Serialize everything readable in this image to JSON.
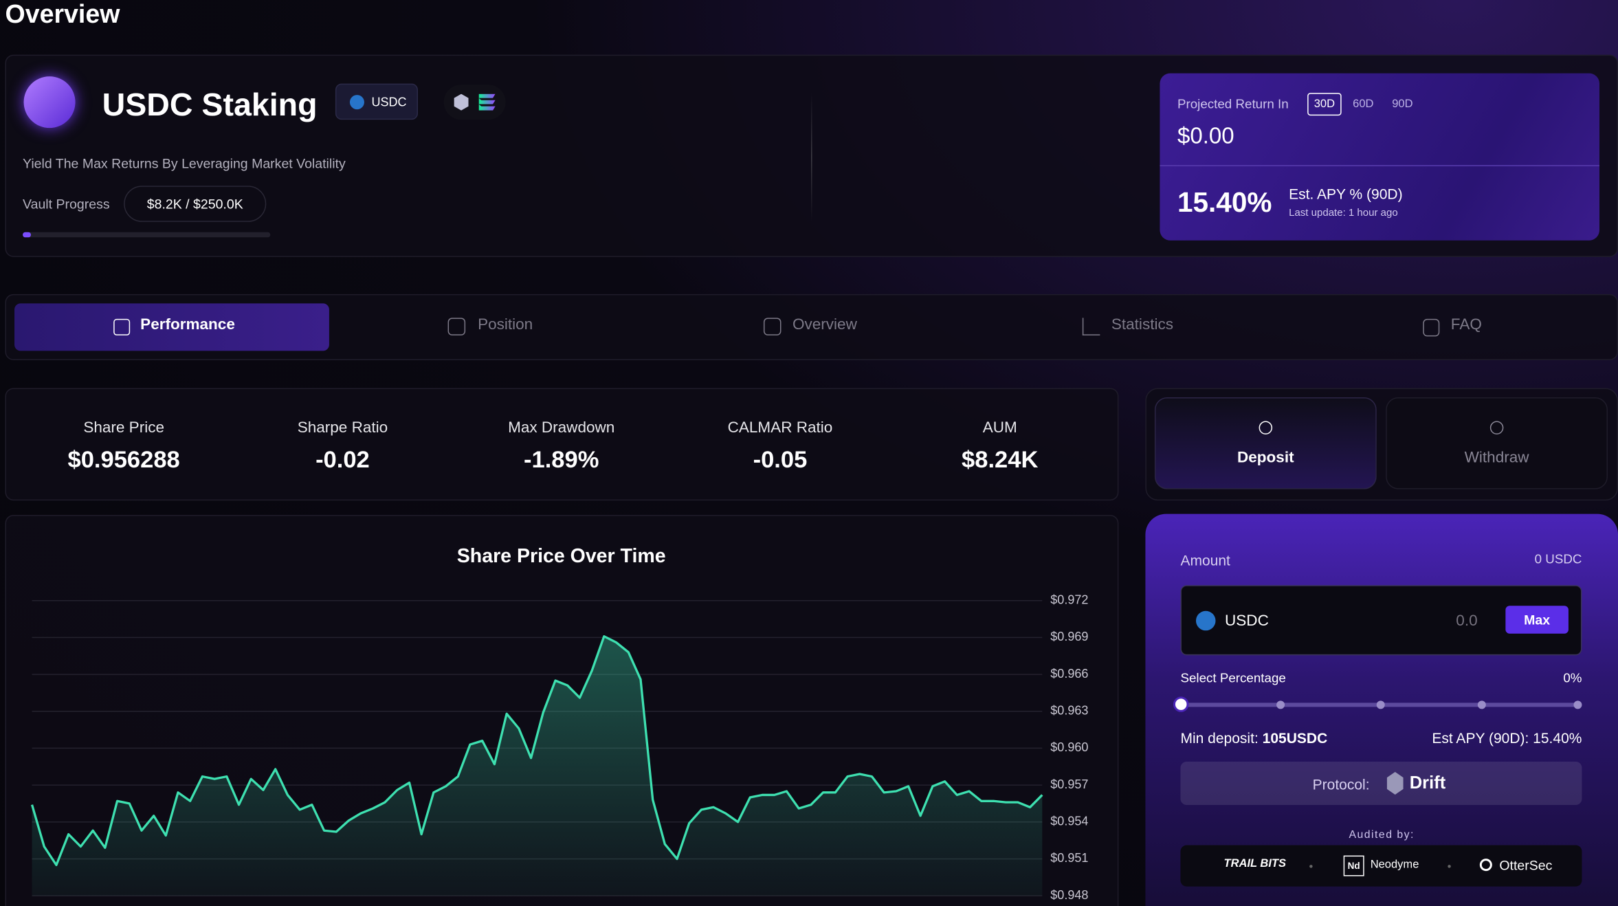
{
  "header": {
    "title": "Overview"
  },
  "vault": {
    "name": "USDC Staking",
    "token": "USDC",
    "description": "Yield The Max Returns By Leveraging Market Volatility",
    "progress_label": "Vault Progress",
    "progress": "$8.2K / $250.0K"
  },
  "projection": {
    "label": "Projected Return In",
    "periods": [
      "30D",
      "60D",
      "90D"
    ],
    "amount": "$0.00",
    "apy": "15.40%",
    "apy_label": "Est. APY % (90D)",
    "updated": "Last update: 1 hour ago"
  },
  "tabs": [
    "Performance",
    "Position",
    "Overview",
    "Statistics",
    "FAQ"
  ],
  "stats": [
    {
      "label": "Share Price",
      "value": "$0.956288"
    },
    {
      "label": "Sharpe Ratio",
      "value": "-0.02"
    },
    {
      "label": "Max Drawdown",
      "value": "-1.89%"
    },
    {
      "label": "CALMAR Ratio",
      "value": "-0.05"
    },
    {
      "label": "AUM",
      "value": "$8.24K"
    }
  ],
  "actions": [
    "Deposit",
    "Withdraw"
  ],
  "deposit": {
    "amount_label": "Amount",
    "balance": "0 USDC",
    "token": "USDC",
    "input": "0.0",
    "max": "Max",
    "percentage_label": "Select Percentage",
    "percentage": "0%",
    "min_deposit_label": "Min deposit:",
    "min_deposit": "105USDC",
    "apy": "Est APY (90D): 15.40%",
    "protocol_label": "Protocol:",
    "protocol": "Drift",
    "audited_label": "Audited by:",
    "auditors": [
      "TRAIL BITS",
      "Neodyme",
      "OtterSec"
    ]
  },
  "chart_data": {
    "type": "line",
    "title": "Share Price Over Time",
    "color": "#3ee0b0",
    "values": [
      0.9554,
      0.952,
      0.9505,
      0.953,
      0.952,
      0.9533,
      0.9519,
      0.9557,
      0.9555,
      0.9533,
      0.9545,
      0.9529,
      0.9564,
      0.9557,
      0.9577,
      0.9575,
      0.9577,
      0.9554,
      0.9575,
      0.9566,
      0.9583,
      0.9562,
      0.955,
      0.9554,
      0.9533,
      0.9532,
      0.9541,
      0.9547,
      0.9551,
      0.9556,
      0.9566,
      0.9572,
      0.953,
      0.9564,
      0.9569,
      0.9577,
      0.9603,
      0.9606,
      0.9587,
      0.9628,
      0.9616,
      0.9592,
      0.9629,
      0.9655,
      0.9651,
      0.9641,
      0.9663,
      0.9691,
      0.9686,
      0.9678,
      0.9656,
      0.9558,
      0.9522,
      0.951,
      0.9539,
      0.955,
      0.9552,
      0.9547,
      0.954,
      0.956,
      0.9562,
      0.9562,
      0.9565,
      0.9551,
      0.9554,
      0.9564,
      0.9564,
      0.9577,
      0.9579,
      0.9577,
      0.9564,
      0.9565,
      0.9569,
      0.9545,
      0.9569,
      0.9573,
      0.9562,
      0.9565,
      0.9557,
      0.9557,
      0.9556,
      0.9556,
      0.9552,
      0.9562
    ],
    "ylim": [
      0.948,
      0.972
    ],
    "yticks": [
      {
        "value": 0.972,
        "label": "$0.972"
      },
      {
        "value": 0.969,
        "label": "$0.969"
      },
      {
        "value": 0.966,
        "label": "$0.966"
      },
      {
        "value": 0.963,
        "label": "$0.963"
      },
      {
        "value": 0.96,
        "label": "$0.960"
      },
      {
        "value": 0.957,
        "label": "$0.957"
      },
      {
        "value": 0.954,
        "label": "$0.954"
      },
      {
        "value": 0.951,
        "label": "$0.951"
      },
      {
        "value": 0.948,
        "label": "$0.948"
      }
    ],
    "grid": true
  }
}
